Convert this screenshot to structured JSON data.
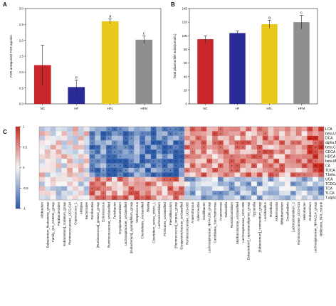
{
  "panels": [
    "A",
    "B",
    "C"
  ],
  "chart_data": [
    {
      "type": "bar",
      "panel": "A",
      "categories": [
        "NC",
        "HF",
        "HFL",
        "HFM"
      ],
      "values": [
        1.22,
        0.53,
        2.6,
        2.02
      ],
      "errors": [
        0.63,
        0.22,
        0.07,
        0.12
      ],
      "significance": [
        "",
        "e",
        "a",
        "c"
      ],
      "colors": [
        "#c8262b",
        "#2a2b97",
        "#e9c81c",
        "#8e8e8e"
      ],
      "ylabel": "FXR antagonist/ FXR agonist",
      "ylim": [
        0,
        3.0
      ],
      "yticks": [
        "0.0",
        "0.5",
        "1.0",
        "1.5",
        "2.0",
        "2.5",
        "3.0"
      ]
    },
    {
      "type": "bar",
      "panel": "B",
      "categories": [
        "NC",
        "HF",
        "HFL",
        "HFM"
      ],
      "values": [
        95,
        104,
        117,
        120
      ],
      "errors": [
        5,
        3,
        6,
        10
      ],
      "significance": [
        "",
        "",
        "a",
        "c"
      ],
      "colors": [
        "#c8262b",
        "#2a2b97",
        "#e9c81c",
        "#8e8e8e"
      ],
      "ylabel": "Total plasma bile acids(umol/L)",
      "ylim": [
        0,
        140
      ],
      "yticks": [
        "0",
        "20",
        "40",
        "60",
        "80",
        "100",
        "120",
        "140"
      ]
    },
    {
      "type": "heatmap",
      "panel": "C",
      "rows": [
        "LCA",
        "beta.UDCA",
        "DCA",
        "alpha.MCA",
        "beta.CA",
        "CDCA",
        "HDCA",
        "beta.MCA",
        "CA",
        "TDCA",
        "T.beta.MCA",
        "UCA",
        "TCDCA",
        "TCA",
        "TLCA",
        "T.alpha.MCA"
      ],
      "columns": [
        "Alloboulum",
        "Eubacterium_fissicatena_group",
        "Family_XIII_AD3011_group",
        "Parabacteroides",
        "Eubacterium]_nodatum_group",
        "Ruminococcaceae_UCG-014",
        "Coprococcus_1",
        "Alistipes",
        "Bacteroides",
        "Romboutsia",
        "[Ruminococcus]_gnavus_group",
        "Enterococcus",
        "Ruminococcaceae_unclassified",
        "Turicibacter",
        "Erysipelatoclostridium",
        "Lachnospiraceae_unclassified",
        "[Eubacterium]_xylanophilum_group",
        "Streptococcus",
        "Clostridiales_unclassified",
        "Blautia",
        "Clostridium_sensu_stricto_1",
        "Lachnoclostridium",
        "Firmicutes_unclassified",
        "Faecalibaculum",
        "[Ruminococcus]_torques_group",
        "Erysipelotrichaceae_unclassified",
        "Ruminococcaceae_UCG-005",
        "Anaerotruncus",
        "Adlercreutzia",
        "Oscillibacter",
        "Lachnospiraceae_NK4A136_group",
        "Candidatus_Saccharimonas",
        "Anaerovorax",
        "Dubosiella",
        "Ruminiclostridium",
        "Muribaculaceae_unclassified",
        "Lachnospiraceae_UCG-006",
        "Eubacterium]_coprostanoligenes_group",
        "Tyzzerella",
        "[Eubacterium]_ruminantium_group",
        "Lactobacillus",
        "Roseburia",
        "Akkermansia",
        "Bifidobacterium",
        "Desulfovibrio",
        "Lachnoclostridium_2",
        "Ruminococcaceae_UCG-013",
        "Helicobacter",
        "Eubacterium",
        "Lachnospiraceae_NK4A214_group",
        "Mollicutes_RF9_norank"
      ],
      "colorbar_ticks": [
        "1",
        "0.5",
        "0",
        "-0.5",
        "-1"
      ],
      "color_low": "#2b5aa8",
      "color_mid": "#f7f7f7",
      "color_high": "#c8281e",
      "cell_marker": "*"
    }
  ]
}
